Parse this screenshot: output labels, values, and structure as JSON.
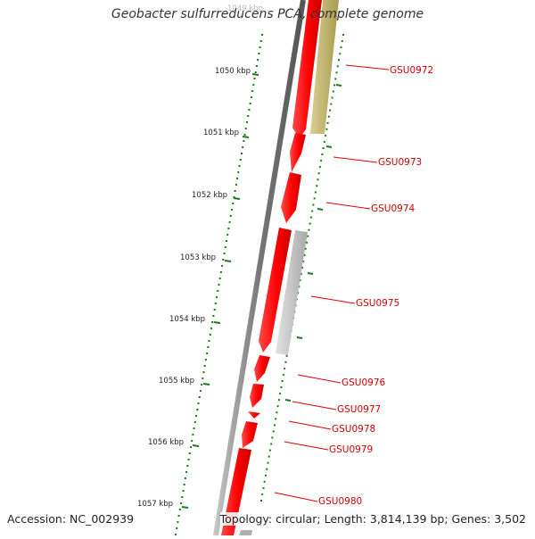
{
  "title": "Geobacter sulfurreducens PCA, complete genome",
  "footer": {
    "accession": "Accession: NC_002939",
    "summary": "Topology: circular; Length: 3,814,139 bp; Genes: 3,502"
  },
  "colors": {
    "backbone": "#888888",
    "gene_forward": "#ff0000",
    "gene_other": "#b8ae6a",
    "gene_gray": "#c8c8c8",
    "ticks": "#1a7a1a",
    "gene_label": "#cc0000",
    "ruler_label": "#222222"
  },
  "ruler": {
    "labels": [
      "1049 kbp",
      "1050 kbp",
      "1051 kbp",
      "1052 kbp",
      "1053 kbp",
      "1054 kbp",
      "1055 kbp",
      "1056 kbp",
      "1057 kbp"
    ]
  },
  "genes": [
    {
      "label": "GSU0972"
    },
    {
      "label": "GSU0973"
    },
    {
      "label": "GSU0974"
    },
    {
      "label": "GSU0975"
    },
    {
      "label": "GSU0976"
    },
    {
      "label": "GSU0977"
    },
    {
      "label": "GSU0978"
    },
    {
      "label": "GSU0979"
    },
    {
      "label": "GSU0980"
    }
  ]
}
